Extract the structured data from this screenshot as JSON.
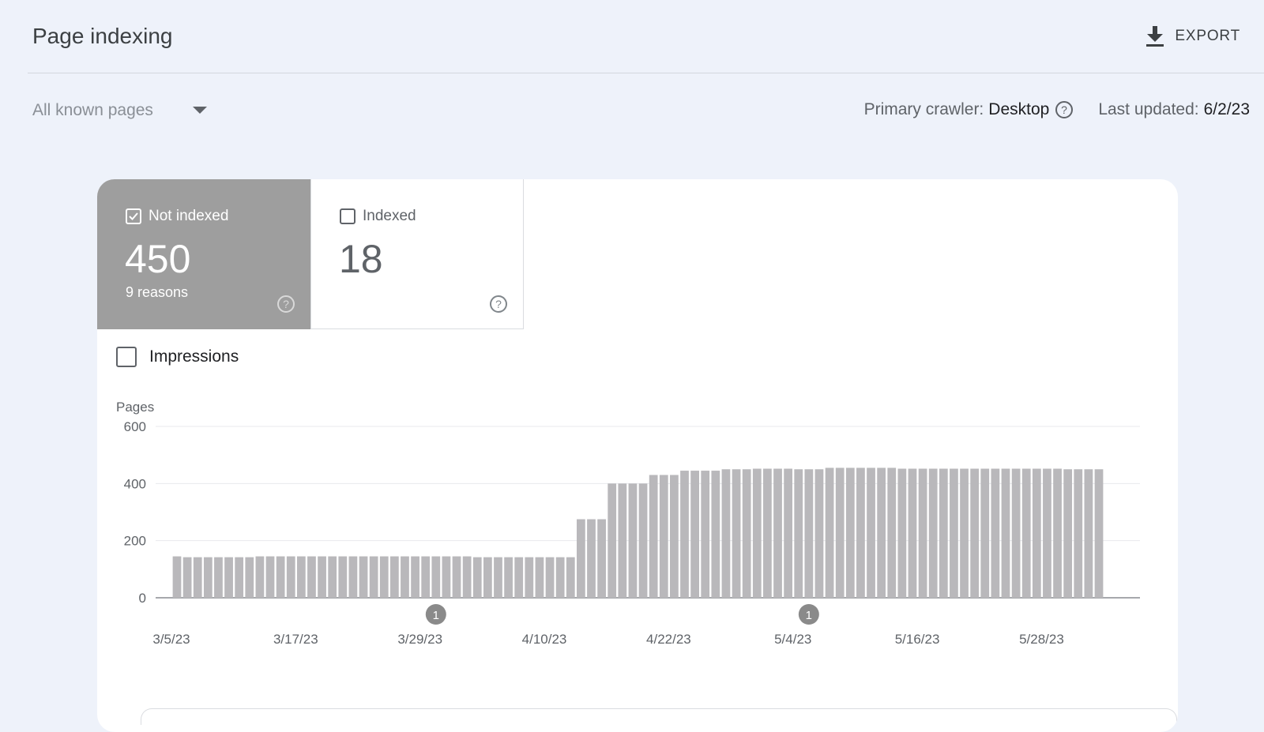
{
  "header": {
    "title": "Page indexing",
    "export_label": "EXPORT"
  },
  "filter": {
    "pages_select": "All known pages",
    "crawler_label": "Primary crawler:",
    "crawler_value": "Desktop",
    "updated_label": "Last updated:",
    "updated_value": "6/2/23"
  },
  "tiles": [
    {
      "label": "Not indexed",
      "count": "450",
      "sub": "9 reasons",
      "checked": true
    },
    {
      "label": "Indexed",
      "count": "18",
      "sub": "",
      "checked": false
    }
  ],
  "impressions": {
    "label": "Impressions",
    "checked": false
  },
  "colors": {
    "bar": "#b9b8bb",
    "tile_selected": "#9e9e9e",
    "marker": "#8a8a8a"
  },
  "chart_data": {
    "type": "bar",
    "title": "",
    "ylabel": "Pages",
    "ylim": [
      0,
      600
    ],
    "yticks": [
      0,
      200,
      400,
      600
    ],
    "grid": true,
    "x_tick_labels": [
      "3/5/23",
      "3/17/23",
      "3/29/23",
      "4/10/23",
      "4/22/23",
      "5/4/23",
      "5/16/23",
      "5/28/23"
    ],
    "x_tick_indices": [
      0,
      12,
      24,
      36,
      48,
      60,
      72,
      84
    ],
    "start_date": "3/5/23",
    "values": [
      145,
      142,
      142,
      142,
      142,
      142,
      142,
      142,
      145,
      145,
      145,
      145,
      145,
      145,
      145,
      145,
      145,
      145,
      145,
      145,
      145,
      145,
      145,
      145,
      145,
      145,
      145,
      145,
      145,
      142,
      142,
      142,
      142,
      142,
      142,
      142,
      142,
      142,
      142,
      275,
      275,
      275,
      400,
      400,
      400,
      400,
      430,
      430,
      430,
      445,
      445,
      445,
      445,
      450,
      450,
      450,
      452,
      452,
      452,
      452,
      450,
      450,
      450,
      455,
      455,
      455,
      455,
      455,
      455,
      455,
      452,
      452,
      452,
      452,
      452,
      452,
      452,
      452,
      452,
      452,
      452,
      452,
      452,
      452,
      452,
      452,
      450,
      450,
      450,
      450
    ],
    "annotations": [
      {
        "label": "1",
        "x": "3/30/23"
      },
      {
        "label": "1",
        "x": "5/5/23"
      }
    ]
  }
}
